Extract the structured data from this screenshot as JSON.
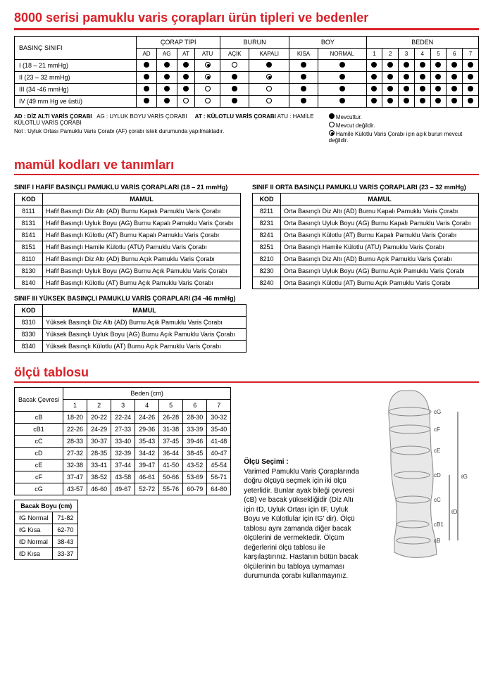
{
  "title_main": "8000 serisi pamuklu varis çorapları ürün tipleri ve bedenler",
  "matrix": {
    "group_headers": [
      "ÇORAP TİPİ",
      "BURUN",
      "BOY",
      "BEDEN"
    ],
    "pressure_label": "BASINÇ SINIFI",
    "sub_headers_corap": [
      "AD",
      "AG",
      "AT",
      "ATU"
    ],
    "sub_headers_burun": [
      "AÇIK",
      "KAPALI"
    ],
    "sub_headers_boy": [
      "KISA",
      "NORMAL"
    ],
    "sub_headers_beden": [
      "1",
      "2",
      "3",
      "4",
      "5",
      "6",
      "7"
    ],
    "rows": [
      {
        "label": "I (18 – 21 mmHg)",
        "cells": [
          "f",
          "f",
          "f",
          "t",
          "o",
          "f",
          "f",
          "f",
          "f",
          "f",
          "f",
          "f",
          "f",
          "f",
          "f"
        ]
      },
      {
        "label": "II (23 – 32 mmHg)",
        "cells": [
          "f",
          "f",
          "f",
          "t",
          "f",
          "t",
          "f",
          "f",
          "f",
          "f",
          "f",
          "f",
          "f",
          "f",
          "f"
        ]
      },
      {
        "label": "III (34 -46 mmHg)",
        "cells": [
          "f",
          "f",
          "f",
          "o",
          "f",
          "o",
          "f",
          "f",
          "f",
          "f",
          "f",
          "f",
          "f",
          "f",
          "f"
        ]
      },
      {
        "label": "IV (49 mm Hg ve üstü)",
        "cells": [
          "f",
          "f",
          "o",
          "o",
          "f",
          "o",
          "f",
          "f",
          "f",
          "f",
          "f",
          "f",
          "f",
          "f",
          "f"
        ]
      }
    ],
    "foot_ad": "AD : DİZ ALTI VARİS ÇORABI",
    "foot_ag": "AG : UYLUK BOYU VARİS ÇORABI",
    "foot_at": "AT : KÜLOTLU VARİS ÇORABI",
    "foot_atu": "ATU : HAMİLE KÜLOTLU VARİS ÇORABI",
    "foot_not": "Not : Uyluk Ortası Pamuklu Varis Çorabı (AF) çorabı istek durumunda yapılmaktadır.",
    "legend1": "Mevcuttur.",
    "legend2": "Mevcut değildir.",
    "legend3": "Hamile Külotlu Varis Çorabı için açık burun mevcut değildir."
  },
  "section2_title": "mamül kodları ve tanımları",
  "class1_title": "SINIF I HAFİF BASINÇLI PAMUKLU VARİS ÇORAPLARI (18 – 21 mmHg)",
  "class2_title": "SINIF II ORTA BASINÇLI PAMUKLU VARİS ÇORAPLARI (23 – 32 mmHg)",
  "class3_title": "SINIF III YÜKSEK BASINÇLI PAMUKLU VARİS ÇORAPLARI (34 -46 mmHg)",
  "col_kod": "KOD",
  "col_mamul": "MAMUL",
  "class1": [
    {
      "k": "8111",
      "m": "Hafif Basınçlı Diz Altı (AD) Burnu Kapalı Pamuklu Varis Çorabı"
    },
    {
      "k": "8131",
      "m": "Hafif Basınçlı Uyluk Boyu (AG) Burnu Kapalı Pamuklu Varis Çorabı"
    },
    {
      "k": "8141",
      "m": "Hafif Basınçlı Külotlu (AT) Burnu Kapalı Pamuklu Varis Çorabı"
    },
    {
      "k": "8151",
      "m": "Hafif Basınçlı Hamile Külotlu (ATU)  Pamuklu Varis Çorabı"
    },
    {
      "k": "8110",
      "m": "Hafif Basınçlı Diz Altı (AD) Burnu Açık Pamuklu Varis Çorabı"
    },
    {
      "k": "8130",
      "m": "Hafif Basınçlı Uyluk Boyu (AG) Burnu Açık Pamuklu Varis Çorabı"
    },
    {
      "k": "8140",
      "m": "Hafif Basınçlı Külotlu (AT) Burnu Açık Pamuklu Varis Çorabı"
    }
  ],
  "class2": [
    {
      "k": "8211",
      "m": "Orta Basınçlı Diz Altı (AD) Burnu Kapalı Pamuklu Varis Çorabı"
    },
    {
      "k": "8231",
      "m": "Orta Basınçlı Uyluk Boyu (AG) Burnu Kapalı Pamuklu Varis Çorabı"
    },
    {
      "k": "8241",
      "m": "Orta Basınçlı Külotlu (AT) Burnu Kapalı Pamuklu Varis Çorabı"
    },
    {
      "k": "8251",
      "m": "Orta Basınçlı Hamile Külotlu (ATU)  Pamuklu Varis Çorabı"
    },
    {
      "k": "8210",
      "m": "Orta Basınçlı Diz Altı (AD) Burnu Açık Pamuklu Varis Çorabı"
    },
    {
      "k": "8230",
      "m": "Orta Basınçlı Uyluk Boyu (AG) Burnu Açık Pamuklu Varis Çorabı"
    },
    {
      "k": "8240",
      "m": "Orta Basınçlı Külotlu (AT) Burnu Açık Pamuklu Varis Çorabı"
    }
  ],
  "class3": [
    {
      "k": "8310",
      "m": "Yüksek Basınçlı Diz Altı (AD) Burnu Açık Pamuklu Varis Çorabı"
    },
    {
      "k": "8330",
      "m": "Yüksek Basınçlı Uyluk Boyu (AG) Burnu Açık Pamuklu Varis Çorabı"
    },
    {
      "k": "8340",
      "m": "Yüksek Basınçlı Külotlu (AT) Burnu Açık Pamuklu Varis Çorabı"
    }
  ],
  "section3_title": "ölçü tablosu",
  "sizes": {
    "bacak_label": "Bacak Çevresi",
    "beden_label": "Beden (cm)",
    "cols": [
      "1",
      "2",
      "3",
      "4",
      "5",
      "6",
      "7"
    ],
    "rows": [
      {
        "l": "cB",
        "v": [
          "18-20",
          "20-22",
          "22-24",
          "24-26",
          "26-28",
          "28-30",
          "30-32"
        ]
      },
      {
        "l": "cB1",
        "v": [
          "22-26",
          "24-29",
          "27-33",
          "29-36",
          "31-38",
          "33-39",
          "35-40"
        ]
      },
      {
        "l": "cC",
        "v": [
          "28-33",
          "30-37",
          "33-40",
          "35-43",
          "37-45",
          "39-46",
          "41-48"
        ]
      },
      {
        "l": "cD",
        "v": [
          "27-32",
          "28-35",
          "32-39",
          "34-42",
          "36-44",
          "38-45",
          "40-47"
        ]
      },
      {
        "l": "cE",
        "v": [
          "32-38",
          "33-41",
          "37-44",
          "39-47",
          "41-50",
          "43-52",
          "45-54"
        ]
      },
      {
        "l": "cF",
        "v": [
          "37-47",
          "38-52",
          "43-58",
          "46-61",
          "50-66",
          "53-69",
          "56-71"
        ]
      },
      {
        "l": "cG",
        "v": [
          "43-57",
          "46-60",
          "49-67",
          "52-72",
          "55-76",
          "60-79",
          "64-80"
        ]
      }
    ]
  },
  "legboy": {
    "header": "Bacak Boyu (cm)",
    "rows": [
      {
        "l": "ℓG Normal",
        "v": "71-82"
      },
      {
        "l": "ℓG Kısa",
        "v": "62-70"
      },
      {
        "l": "ℓD Normal",
        "v": "38-43"
      },
      {
        "l": "ℓD Kısa",
        "v": "33-37"
      }
    ]
  },
  "olcu": {
    "heading": "Ölçü Seçimi :",
    "text": "Varimed  Pamuklu Varis Çoraplarında doğru ölçüyü seçmek için iki ölçü yeterlidir. Bunlar ayak bileği çevresi (cB) ve bacak yüksekliğidir (Diz Altı için ℓD, Uyluk Ortası için ℓF, Uyluk Boyu ve Külotlular için ℓG' dir). Ölçü tablosu aynı zamanda diğer bacak ölçülerini de vermektedir. Ölçüm değerlerini ölçü tablosu ile karşılaştırınız.  Hastanın bütün bacak ölçülerinin bu tabloya uymaması durumunda çorabı kullanmayınız."
  },
  "leg_labels": [
    "cG",
    "cF",
    "cE",
    "cD",
    "cC",
    "cB1",
    "cB"
  ],
  "colors": {
    "accent": "#d92128",
    "text": "#000",
    "line": "#888"
  }
}
